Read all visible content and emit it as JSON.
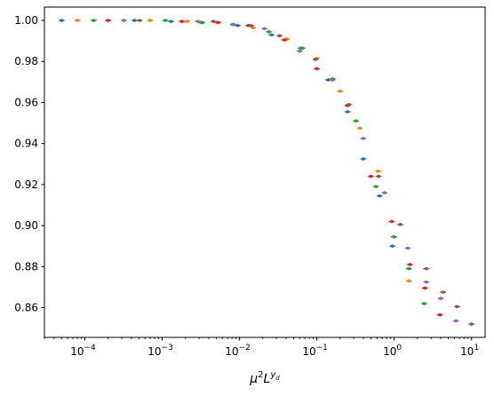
{
  "chart_data": {
    "type": "scatter",
    "title": "",
    "xlabel": "μ²L^{y_d}",
    "ylabel": "",
    "xscale": "log",
    "xlim": [
      3e-05,
      15
    ],
    "ylim": [
      0.8455,
      1.0065
    ],
    "grid": false,
    "y_ticks": [
      "0.86",
      "0.88",
      "0.90",
      "0.92",
      "0.94",
      "0.96",
      "0.98",
      "1.00"
    ],
    "y_tick_values": [
      0.86,
      0.88,
      0.9,
      0.92,
      0.94,
      0.96,
      0.98,
      1.0
    ],
    "x_tick_values": [
      0.0001,
      0.001,
      0.01,
      0.1,
      1,
      10
    ],
    "x_tick_exponents": [
      "−4",
      "−3",
      "−2",
      "−1",
      "0",
      "1"
    ],
    "x_tick_base": "10",
    "series": [
      {
        "color": "#1f77b4",
        "x": [
          5e-05,
          0.00044,
          0.0013,
          0.0032,
          0.0095,
          0.026,
          0.062,
          0.14,
          0.25,
          0.4,
          0.65,
          0.95
        ],
        "y": [
          1.0,
          1.0,
          0.9995,
          0.999,
          0.9975,
          0.993,
          0.9865,
          0.971,
          0.9555,
          0.9325,
          0.9145,
          0.89
        ]
      },
      {
        "color": "#ff7f0e",
        "x": [
          8e-05,
          0.0007,
          0.0021,
          0.0052,
          0.015,
          0.041,
          0.1,
          0.2,
          0.36,
          0.62,
          0.98,
          1.55
        ],
        "y": [
          1.0,
          1.0,
          0.9995,
          0.999,
          0.9965,
          0.991,
          0.9815,
          0.9655,
          0.9475,
          0.9265,
          0.8945,
          0.873
        ]
      },
      {
        "color": "#2ca02c",
        "x": [
          0.00013,
          0.0011,
          0.0033,
          0.0082,
          0.024,
          0.065,
          0.16,
          0.32,
          0.58,
          1.0,
          1.55,
          2.45
        ],
        "y": [
          1.0,
          1.0,
          0.999,
          0.998,
          0.9945,
          0.9865,
          0.9715,
          0.951,
          0.919,
          0.8945,
          0.879,
          0.862
        ]
      },
      {
        "color": "#d62728",
        "x": [
          0.0002,
          0.0018,
          0.0053,
          0.013,
          0.038,
          0.1,
          0.25,
          0.5,
          0.93,
          1.6,
          2.5,
          3.9
        ],
        "y": [
          1.0,
          0.9995,
          0.999,
          0.9975,
          0.9905,
          0.9765,
          0.9585,
          0.924,
          0.902,
          0.881,
          0.8695,
          0.8565
        ]
      },
      {
        "color": "#9467bd",
        "x": [
          0.00032,
          0.0029,
          0.0085,
          0.021,
          0.06,
          0.16,
          0.4,
          0.75,
          1.5,
          2.6,
          4.0,
          6.3
        ],
        "y": [
          1.0,
          0.9995,
          0.998,
          0.996,
          0.985,
          0.971,
          0.9425,
          0.916,
          0.889,
          0.8725,
          0.8645,
          0.8535
        ]
      },
      {
        "color": "#8c564b",
        "x": [
          0.00051,
          0.0046,
          0.014,
          0.033,
          0.096,
          0.26,
          0.63,
          1.2,
          2.6,
          4.3,
          6.5,
          10.0
        ],
        "y": [
          1.0,
          0.9995,
          0.9975,
          0.9925,
          0.981,
          0.959,
          0.924,
          0.9005,
          0.879,
          0.8675,
          0.8605,
          0.852
        ]
      }
    ]
  }
}
